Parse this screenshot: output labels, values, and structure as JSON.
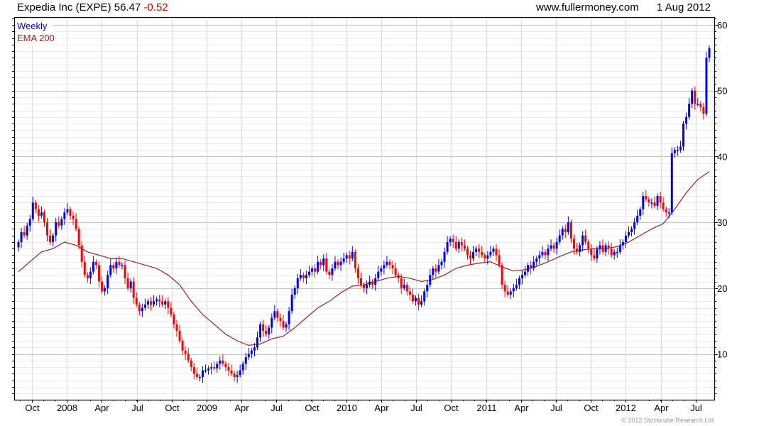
{
  "header": {
    "title": "Expedia Inc (EXPE) 56.47",
    "change": "-0.52",
    "source": "www.fullermoney.com",
    "date": "1 Aug 2012"
  },
  "legend": {
    "series_label": "Weekly",
    "ema_label": "EMA 200"
  },
  "footer": {
    "copyright": "© 2012 Stockcube Research Ltd"
  },
  "colors": {
    "up": "#0000ff",
    "down": "#ff0000",
    "ema": "#a02020",
    "change": "#cc0000"
  },
  "chart_data": {
    "type": "candlestick",
    "title": "Expedia Inc (EXPE)",
    "frequency": "weekly",
    "ylim": [
      3,
      61
    ],
    "y_ticks": [
      10,
      20,
      30,
      40,
      50,
      60
    ],
    "x_tick_labels": [
      "Oct",
      "2008",
      "Apr",
      "Jul",
      "Oct",
      "2009",
      "Apr",
      "Jul",
      "Oct",
      "2010",
      "Apr",
      "Jul",
      "Oct",
      "2011",
      "Apr",
      "Jul",
      "Oct",
      "2012",
      "Apr",
      "Jul"
    ],
    "grid": true,
    "closes": [
      27,
      28.5,
      28,
      29.5,
      30.5,
      33,
      32,
      31,
      31.5,
      30,
      28,
      27,
      28,
      30,
      29.5,
      30.5,
      31.5,
      32,
      31,
      30.5,
      29,
      26.5,
      24,
      22,
      21.5,
      22.5,
      24,
      23.5,
      21,
      19.5,
      20,
      22,
      23.5,
      23,
      24,
      23.5,
      23.5,
      21.5,
      20,
      21,
      18.5,
      17.5,
      16.5,
      17,
      17.5,
      18,
      17.5,
      18,
      18.3,
      18,
      17.5,
      18,
      17,
      16,
      14.5,
      13.5,
      12,
      10.5,
      10,
      9,
      8,
      7,
      6.5,
      6.5,
      7.5,
      7.5,
      7.8,
      8,
      7.8,
      8.5,
      9,
      8.5,
      8,
      7.5,
      7,
      6.5,
      6.8,
      7.5,
      8.5,
      9.5,
      10,
      10.5,
      11,
      12.5,
      14.5,
      13.5,
      13,
      14,
      15.5,
      16.5,
      15.5,
      15,
      14,
      14.5,
      16.5,
      19,
      20,
      21.5,
      22,
      21.5,
      22,
      22.5,
      23,
      22.5,
      24,
      23.5,
      24.5,
      22.5,
      22,
      23,
      24,
      23.5,
      24,
      24.5,
      25,
      24.5,
      25.5,
      23,
      21.5,
      20.5,
      20,
      20.5,
      21,
      20.5,
      21.5,
      22.5,
      23,
      23.5,
      24,
      23.5,
      23,
      22,
      21.5,
      20,
      20.5,
      19.5,
      19,
      18,
      18.5,
      17.5,
      18,
      19.5,
      20.5,
      22,
      23,
      22.5,
      23.5,
      24,
      25.5,
      27,
      27.5,
      27,
      26,
      27,
      26.5,
      26,
      25,
      24.5,
      25.5,
      26,
      25.5,
      25,
      24.5,
      25,
      25.5,
      26,
      25,
      23.5,
      20.5,
      19.5,
      19,
      19.5,
      20,
      20.5,
      21.5,
      22,
      22.5,
      23.5,
      23,
      24,
      24.5,
      25,
      25.5,
      25,
      26,
      26.5,
      26,
      27,
      28,
      29,
      28.5,
      30,
      27.5,
      26,
      25.5,
      26.5,
      28,
      27,
      26,
      25,
      24.5,
      26,
      26.5,
      25.5,
      26.5,
      26,
      25,
      25.5,
      25.5,
      26.5,
      27,
      28,
      28.5,
      29,
      30,
      31,
      32,
      34,
      33.5,
      33,
      33,
      32.5,
      34,
      33,
      32,
      31.5,
      31.5,
      40.5,
      41,
      41,
      41.5,
      45,
      46,
      48,
      50,
      48,
      48,
      47.5,
      46.5,
      55,
      56.47
    ],
    "ema_200_monthly": [
      22.5,
      24,
      25.5,
      26,
      27,
      26.5,
      25.5,
      25,
      24.5,
      24.5,
      24,
      23.5,
      23,
      22,
      20.5,
      18,
      16,
      14.5,
      13,
      12,
      11.3,
      11.5,
      12.3,
      12.7,
      14,
      15.5,
      17,
      18,
      19.3,
      20.3,
      20.5,
      21,
      21.5,
      21.8,
      21.5,
      21,
      21.3,
      22,
      23,
      23.5,
      23.8,
      24,
      23.2,
      22.6,
      22.8,
      23.3,
      24,
      24.8,
      25.5,
      25.8,
      26,
      26,
      26.3,
      27,
      28,
      29,
      29.8,
      32,
      34.5,
      36.5,
      37.7
    ]
  }
}
